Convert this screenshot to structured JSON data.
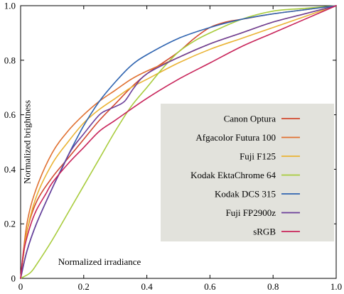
{
  "chart_data": {
    "type": "line",
    "xlabel": "Normalized irradiance",
    "ylabel": "Normalized brightness",
    "xlim": [
      0,
      1
    ],
    "ylim": [
      0,
      1
    ],
    "xticks": [
      0,
      0.2,
      0.4,
      0.6,
      0.8,
      1
    ],
    "yticks": [
      0,
      0.2,
      0.4,
      0.6,
      0.8,
      1
    ],
    "xtick_labels": [
      "0",
      "0.2",
      "0.4",
      "0.6",
      "0.8",
      "1.0"
    ],
    "ytick_labels": [
      "0",
      "0.2",
      "0.4",
      "0.6",
      "0.8",
      "1.0"
    ],
    "grid": false,
    "legend_position": "right",
    "series": [
      {
        "name": "Canon Optura",
        "color": "#d2492f",
        "x": [
          0,
          0.02,
          0.05,
          0.1,
          0.15,
          0.2,
          0.25,
          0.3,
          0.35,
          0.4,
          0.45,
          0.5,
          0.55,
          0.6,
          0.65,
          0.7,
          0.8,
          0.9,
          1.0
        ],
        "y": [
          0,
          0.17,
          0.28,
          0.37,
          0.44,
          0.51,
          0.58,
          0.64,
          0.7,
          0.75,
          0.79,
          0.83,
          0.88,
          0.92,
          0.94,
          0.95,
          0.97,
          0.985,
          1.0
        ]
      },
      {
        "name": "Afgacolor Futura 100",
        "color": "#e07030",
        "x": [
          0,
          0.02,
          0.05,
          0.1,
          0.15,
          0.2,
          0.25,
          0.3,
          0.35,
          0.4,
          0.5,
          0.6,
          0.7,
          0.8,
          0.9,
          1.0
        ],
        "y": [
          0,
          0.2,
          0.33,
          0.46,
          0.54,
          0.6,
          0.65,
          0.69,
          0.73,
          0.76,
          0.81,
          0.86,
          0.9,
          0.94,
          0.97,
          1.0
        ]
      },
      {
        "name": "Fuji F125",
        "color": "#eab334",
        "x": [
          0,
          0.02,
          0.05,
          0.1,
          0.15,
          0.2,
          0.25,
          0.3,
          0.35,
          0.4,
          0.5,
          0.6,
          0.7,
          0.8,
          0.9,
          1.0
        ],
        "y": [
          0,
          0.17,
          0.3,
          0.42,
          0.5,
          0.57,
          0.62,
          0.66,
          0.7,
          0.73,
          0.79,
          0.84,
          0.88,
          0.92,
          0.96,
          1.0
        ]
      },
      {
        "name": "Kodak EktaChrome 64",
        "color": "#a8cc3c",
        "x": [
          0,
          0.03,
          0.05,
          0.1,
          0.15,
          0.2,
          0.25,
          0.3,
          0.35,
          0.4,
          0.45,
          0.5,
          0.55,
          0.6,
          0.7,
          0.8,
          0.9,
          1.0
        ],
        "y": [
          0,
          0.02,
          0.05,
          0.14,
          0.24,
          0.34,
          0.44,
          0.54,
          0.63,
          0.7,
          0.77,
          0.83,
          0.87,
          0.9,
          0.95,
          0.98,
          0.99,
          1.0
        ]
      },
      {
        "name": "Kodak DCS 315",
        "color": "#2f64b0",
        "x": [
          0,
          0.02,
          0.05,
          0.1,
          0.15,
          0.2,
          0.25,
          0.3,
          0.35,
          0.4,
          0.5,
          0.6,
          0.7,
          0.8,
          0.9,
          1.0
        ],
        "y": [
          0,
          0.1,
          0.2,
          0.33,
          0.45,
          0.56,
          0.65,
          0.72,
          0.78,
          0.82,
          0.88,
          0.92,
          0.95,
          0.97,
          0.985,
          1.0
        ]
      },
      {
        "name": "Fuji FP2900z",
        "color": "#6b3f9a",
        "x": [
          0,
          0.02,
          0.05,
          0.1,
          0.13,
          0.16,
          0.2,
          0.25,
          0.28,
          0.3,
          0.33,
          0.36,
          0.4,
          0.5,
          0.6,
          0.7,
          0.8,
          0.9,
          1.0
        ],
        "y": [
          0,
          0.1,
          0.2,
          0.33,
          0.4,
          0.47,
          0.53,
          0.6,
          0.62,
          0.63,
          0.65,
          0.7,
          0.75,
          0.81,
          0.86,
          0.9,
          0.94,
          0.97,
          1.0
        ]
      },
      {
        "name": "sRGB",
        "color": "#c8245a",
        "x": [
          0,
          0.01,
          0.03,
          0.05,
          0.08,
          0.1,
          0.15,
          0.2,
          0.25,
          0.3,
          0.4,
          0.5,
          0.6,
          0.7,
          0.8,
          0.9,
          1.0
        ],
        "y": [
          0,
          0.1,
          0.19,
          0.25,
          0.31,
          0.35,
          0.42,
          0.48,
          0.54,
          0.58,
          0.66,
          0.73,
          0.79,
          0.85,
          0.9,
          0.95,
          1.0
        ]
      }
    ]
  }
}
